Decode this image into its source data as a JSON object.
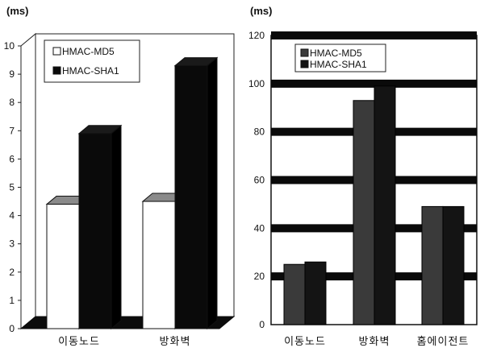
{
  "chart_data": [
    {
      "type": "bar",
      "unit_label": "(ms)",
      "categories": [
        "이동노드",
        "방화벽"
      ],
      "series": [
        {
          "name": "HMAC-MD5",
          "values": [
            4.4,
            4.5
          ],
          "color": "#ffffff"
        },
        {
          "name": "HMAC-SHA1",
          "values": [
            6.9,
            9.3
          ],
          "color": "#0a0a0a"
        }
      ],
      "ylim": [
        0,
        10
      ],
      "yticks": [
        "0",
        "1",
        "2",
        "3",
        "4",
        "5",
        "6",
        "7",
        "8",
        "9",
        "10"
      ],
      "grid": false,
      "legend": "top-left",
      "style": "3d"
    },
    {
      "type": "bar",
      "unit_label": "(ms)",
      "categories": [
        "이동노드",
        "방화벽",
        "홈에이전트"
      ],
      "series": [
        {
          "name": "HMAC-MD5",
          "values": [
            25,
            93,
            49
          ],
          "color": "#3a3a3a"
        },
        {
          "name": "HMAC-SHA1",
          "values": [
            26,
            99,
            49
          ],
          "color": "#141414"
        }
      ],
      "ylim": [
        0,
        120
      ],
      "yticks": [
        "0",
        "20",
        "40",
        "60",
        "80",
        "100",
        "120"
      ],
      "grid": true,
      "legend": "top-left"
    }
  ]
}
